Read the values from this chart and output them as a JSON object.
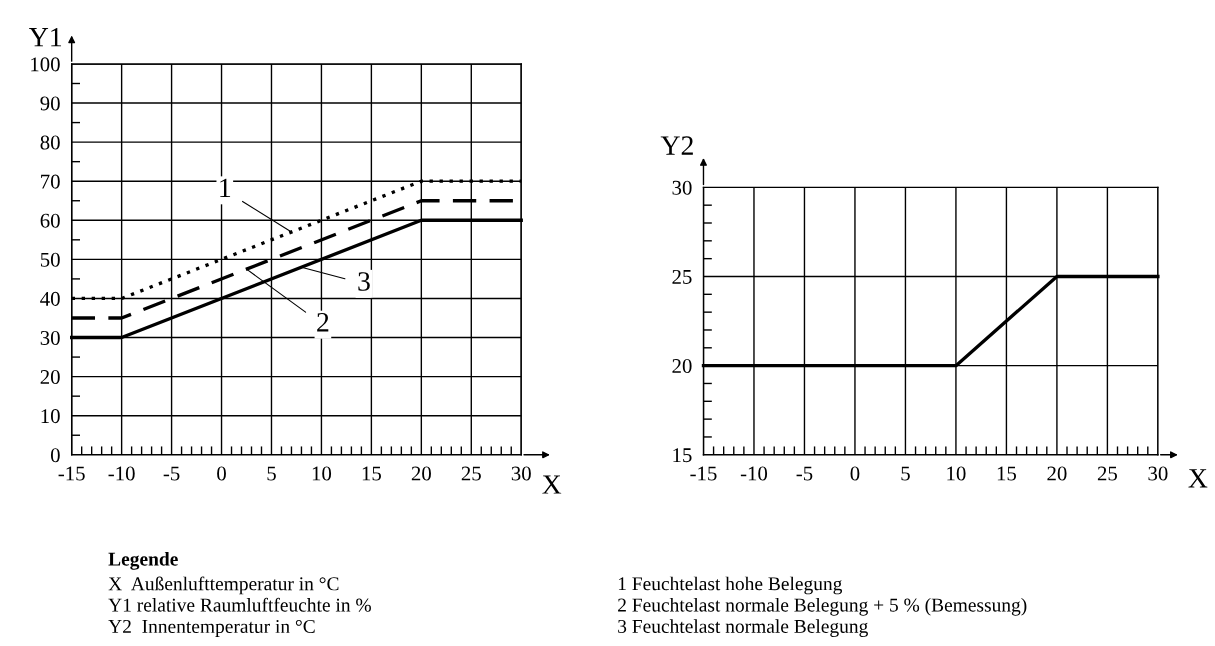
{
  "chart_data": [
    {
      "type": "line",
      "ylabel": "Y1",
      "xlabel": "X",
      "xlim": [
        -15,
        30
      ],
      "ylim": [
        0,
        100
      ],
      "xticks": [
        -15,
        -10,
        -5,
        0,
        5,
        10,
        15,
        20,
        25,
        30
      ],
      "yticks": [
        0,
        10,
        20,
        30,
        40,
        50,
        60,
        70,
        80,
        90,
        100
      ],
      "grid": true,
      "legend": false,
      "marker": "none",
      "x": [
        -15,
        -10,
        20,
        30
      ],
      "series": [
        {
          "color": "#000000",
          "line_style": "dotted",
          "values": [
            40,
            40,
            70,
            70
          ]
        },
        {
          "color": "#000000",
          "line_style": "dashed",
          "values": [
            35,
            35,
            65,
            65
          ]
        },
        {
          "color": "#000000",
          "line_style": "solid",
          "values": [
            30,
            30,
            60,
            60
          ]
        }
      ],
      "annotations": [
        {
          "text": "1",
          "x": 7,
          "y": 57
        },
        {
          "text": "2",
          "x": 2.5,
          "y": 47.5
        },
        {
          "text": "3",
          "x": 8,
          "y": 48
        },
        "Legende",
        "X  Außenlufttemperatur in °C",
        "Y1 relative Raumluftfeuchte in %",
        "Y2  Innentemperatur in °C",
        "1 Feuchtelast hohe Belegung",
        "2 Feuchtelast normale Belegung + 5 % (Bemessung)",
        "3 Feuchtelast normale Belegung"
      ]
    },
    {
      "type": "line",
      "ylabel": "Y2",
      "xlabel": "X",
      "xlim": [
        -15,
        30
      ],
      "ylim": [
        15,
        30
      ],
      "xticks": [
        -15,
        -10,
        -5,
        0,
        5,
        10,
        15,
        20,
        25,
        30
      ],
      "yticks": [
        15,
        20,
        25,
        30
      ],
      "grid": true,
      "legend": false,
      "marker": "none",
      "x": [
        -15,
        10,
        20,
        30
      ],
      "series": [
        {
          "color": "#000000",
          "line_style": "solid",
          "values": [
            20,
            20,
            25,
            25
          ]
        }
      ]
    }
  ]
}
